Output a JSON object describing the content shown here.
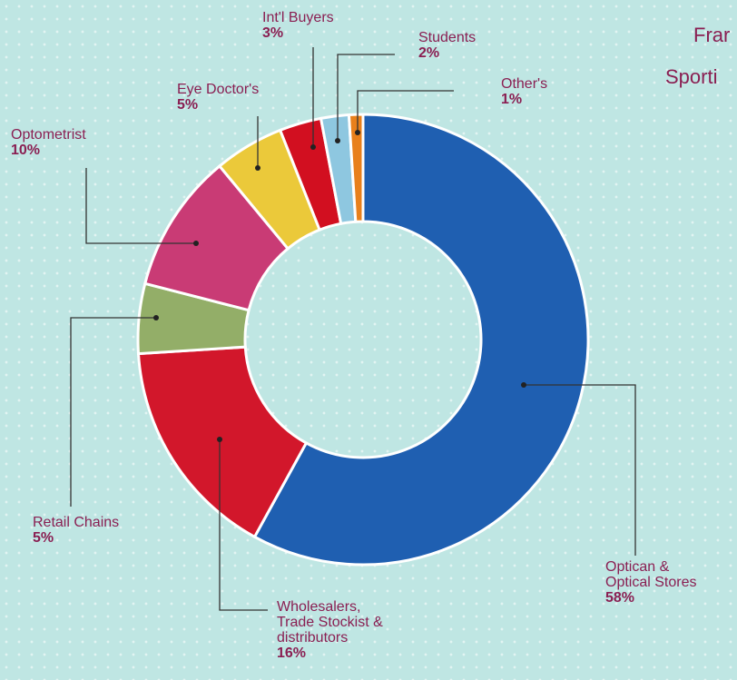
{
  "corner_text": [
    "Frar",
    "Sporti"
  ],
  "chart_data": {
    "type": "pie",
    "donut": true,
    "slices": [
      {
        "label": "Optican &\nOptical Stores",
        "value": 58,
        "pct_label": "58%",
        "color": "#1f5fb1"
      },
      {
        "label": "Wholesalers,\nTrade Stockist &\ndistributors",
        "value": 16,
        "pct_label": "16%",
        "color": "#d2172b"
      },
      {
        "label": "Retail Chains",
        "value": 5,
        "pct_label": "5%",
        "color": "#93ae68"
      },
      {
        "label": "Optometrist",
        "value": 10,
        "pct_label": "10%",
        "color": "#c93b75"
      },
      {
        "label": "Eye Doctor's",
        "value": 5,
        "pct_label": "5%",
        "color": "#ebc93a"
      },
      {
        "label": "Int'l Buyers",
        "value": 3,
        "pct_label": "3%",
        "color": "#d20f20"
      },
      {
        "label": "Students",
        "value": 2,
        "pct_label": "2%",
        "color": "#8ec7e0"
      },
      {
        "label": "Other's",
        "value": 1,
        "pct_label": "1%",
        "color": "#e8801c"
      }
    ]
  }
}
